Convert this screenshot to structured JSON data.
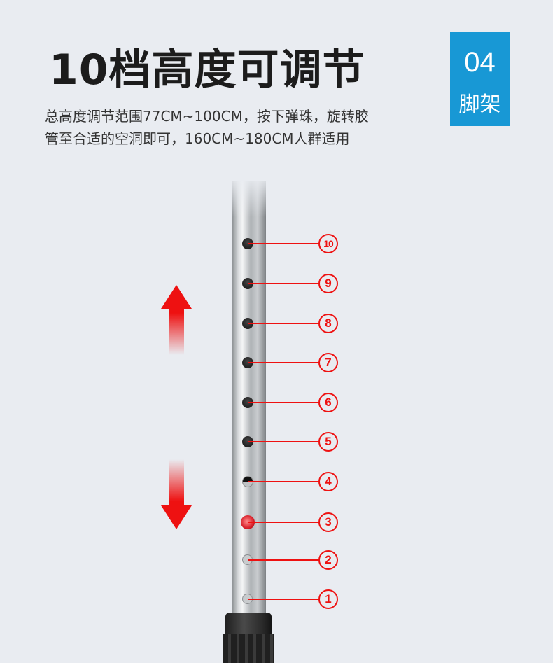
{
  "title": "10档高度可调节",
  "description": [
    "总高度调节范围77CM~100CM，按下弹珠，旋转胶",
    "管至合适的空洞即可，160CM~180CM人群适用"
  ],
  "badge": {
    "number": "04",
    "label": "脚架"
  },
  "positions": [
    {
      "label": "10",
      "state": "open"
    },
    {
      "label": "9",
      "state": "open"
    },
    {
      "label": "8",
      "state": "open"
    },
    {
      "label": "7",
      "state": "open"
    },
    {
      "label": "6",
      "state": "open"
    },
    {
      "label": "5",
      "state": "open"
    },
    {
      "label": "4",
      "state": "partial"
    },
    {
      "label": "3",
      "state": "selected"
    },
    {
      "label": "2",
      "state": "covered"
    },
    {
      "label": "1",
      "state": "covered"
    }
  ],
  "colors": {
    "accent": "#ee1111",
    "badge": "#1898d5",
    "background": "#e9ecf1"
  }
}
